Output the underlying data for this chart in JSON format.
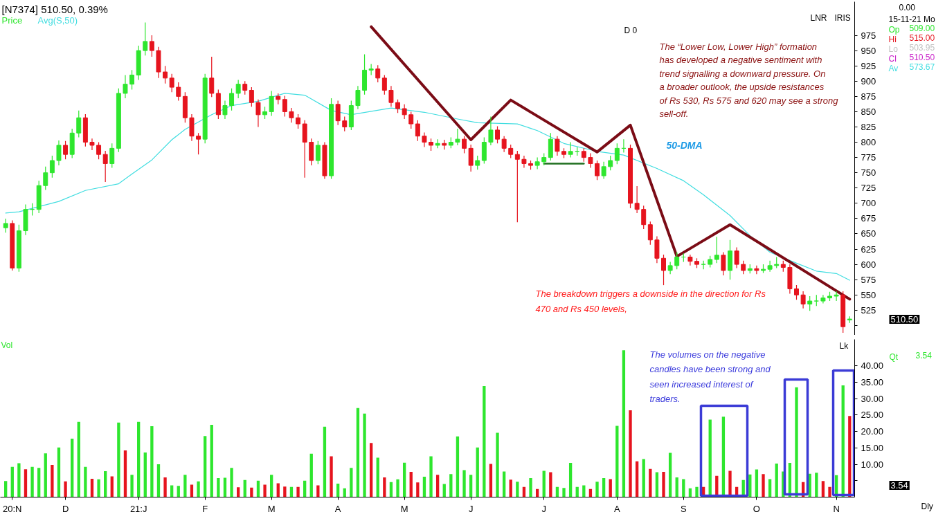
{
  "chart_data": [
    {
      "type": "candlestick",
      "title": "[N7374]  510.50,  0.39%",
      "legend": "top left",
      "tick_labels": "y",
      "ylim": [
        484,
        1030
      ],
      "yticks": [
        {
          "value": 500,
          "label": null
        },
        525,
        550,
        575,
        600,
        625,
        650,
        675,
        700,
        725,
        750,
        775,
        800,
        825,
        850,
        875,
        900,
        925,
        950,
        975
      ],
      "series": [
        {
          "name": "Price",
          "type": "candlestick",
          "color": "#2ee62e",
          "ohlc": [
            [
              660,
              675,
              652,
              667
            ],
            [
              667,
              672,
              590,
              594
            ],
            [
              594,
              665,
              588,
              655
            ],
            [
              655,
              698,
              648,
              690
            ],
            [
              690,
              700,
              680,
              690
            ],
            [
              690,
              737,
              684,
              729
            ],
            [
              729,
              760,
              722,
              750
            ],
            [
              750,
              778,
              742,
              770
            ],
            [
              770,
              803,
              762,
              795
            ],
            [
              795,
              802,
              772,
              780
            ],
            [
              780,
              822,
              774,
              815
            ],
            [
              815,
              852,
              808,
              840
            ],
            [
              840,
              846,
              793,
              800
            ],
            [
              800,
              806,
              787,
              795
            ],
            [
              795,
              800,
              772,
              780
            ],
            [
              780,
              786,
              735,
              765
            ],
            [
              765,
              798,
              758,
              790
            ],
            [
              790,
              888,
              784,
              880
            ],
            [
              880,
              910,
              872,
              895
            ],
            [
              895,
              918,
              886,
              910
            ],
            [
              910,
              958,
              902,
              950
            ],
            [
              950,
              996,
              942,
              965
            ],
            [
              965,
              975,
              940,
              950
            ],
            [
              950,
              956,
              905,
              915
            ],
            [
              915,
              925,
              896,
              905
            ],
            [
              905,
              912,
              882,
              890
            ],
            [
              890,
              898,
              868,
              875
            ],
            [
              875,
              882,
              832,
              840
            ],
            [
              840,
              846,
              802,
              810
            ],
            [
              810,
              815,
              780,
              805
            ],
            [
              805,
              912,
              798,
              905
            ],
            [
              905,
              940,
              874,
              880
            ],
            [
              880,
              886,
              838,
              845
            ],
            [
              845,
              868,
              838,
              860
            ],
            [
              860,
              888,
              852,
              880
            ],
            [
              880,
              902,
              872,
              895
            ],
            [
              895,
              900,
              878,
              885
            ],
            [
              885,
              890,
              858,
              865
            ],
            [
              865,
              870,
              825,
              845
            ],
            [
              845,
              858,
              838,
              850
            ],
            [
              850,
              884,
              843,
              875
            ],
            [
              875,
              880,
              862,
              870
            ],
            [
              870,
              876,
              842,
              850
            ],
            [
              850,
              856,
              832,
              840
            ],
            [
              840,
              846,
              822,
              830
            ],
            [
              830,
              836,
              742,
              800
            ],
            [
              800,
              806,
              762,
              770
            ],
            [
              770,
              802,
              764,
              795
            ],
            [
              795,
              800,
              740,
              745
            ],
            [
              745,
              872,
              740,
              862
            ],
            [
              862,
              868,
              828,
              835
            ],
            [
              835,
              842,
              818,
              825
            ],
            [
              825,
              868,
              820,
              860
            ],
            [
              860,
              892,
              854,
              885
            ],
            [
              885,
              944,
              878,
              918
            ],
            [
              918,
              928,
              910,
              920
            ],
            [
              920,
              926,
              898,
              905
            ],
            [
              905,
              910,
              878,
              885
            ],
            [
              885,
              892,
              858,
              865
            ],
            [
              865,
              870,
              848,
              855
            ],
            [
              855,
              862,
              838,
              845
            ],
            [
              845,
              850,
              822,
              830
            ],
            [
              830,
              836,
              802,
              810
            ],
            [
              810,
              816,
              792,
              800
            ],
            [
              800,
              806,
              786,
              795
            ],
            [
              795,
              805,
              790,
              798
            ],
            [
              798,
              804,
              788,
              795
            ],
            [
              795,
              808,
              790,
              800
            ],
            [
              800,
              822,
              795,
              805
            ],
            [
              805,
              810,
              782,
              790
            ],
            [
              790,
              796,
              752,
              762
            ],
            [
              762,
              778,
              755,
              770
            ],
            [
              770,
              808,
              765,
              800
            ],
            [
              800,
              842,
              795,
              820
            ],
            [
              820,
              826,
              798,
              805
            ],
            [
              805,
              810,
              784,
              790
            ],
            [
              790,
              796,
              774,
              780
            ],
            [
              780,
              786,
              669,
              772
            ],
            [
              772,
              778,
              758,
              765
            ],
            [
              765,
              770,
              755,
              762
            ],
            [
              762,
              775,
              756,
              768
            ],
            [
              768,
              782,
              762,
              775
            ],
            [
              775,
              815,
              770,
              805
            ],
            [
              805,
              810,
              778,
              785
            ],
            [
              785,
              790,
              774,
              780
            ],
            [
              780,
              800,
              775,
              785
            ],
            [
              785,
              792,
              778,
              785
            ],
            [
              785,
              790,
              768,
              775
            ],
            [
              775,
              782,
              758,
              765
            ],
            [
              765,
              770,
              738,
              745
            ],
            [
              745,
              768,
              740,
              760
            ],
            [
              760,
              778,
              754,
              770
            ],
            [
              770,
              798,
              764,
              790
            ],
            [
              790,
              805,
              783,
              790
            ],
            [
              790,
              796,
              692,
              700
            ],
            [
              700,
              728,
              684,
              690
            ],
            [
              690,
              696,
              658,
              665
            ],
            [
              665,
              670,
              632,
              640
            ],
            [
              640,
              646,
              602,
              610
            ],
            [
              610,
              616,
              566,
              590
            ],
            [
              590,
              604,
              584,
              598
            ],
            [
              598,
              620,
              592,
              612
            ],
            [
              612,
              618,
              604,
              612
            ],
            [
              612,
              616,
              598,
              605
            ],
            [
              605,
              610,
              594,
              600
            ],
            [
              600,
              606,
              592,
              600
            ],
            [
              600,
              614,
              595,
              608
            ],
            [
              608,
              645,
              602,
              615
            ],
            [
              615,
              620,
              582,
              590
            ],
            [
              590,
              640,
              575,
              622
            ],
            [
              622,
              628,
              594,
              600
            ],
            [
              600,
              606,
              584,
              590
            ],
            [
              590,
              600,
              585,
              593
            ],
            [
              593,
              598,
              584,
              590
            ],
            [
              590,
              600,
              586,
              592
            ],
            [
              592,
              606,
              588,
              598
            ],
            [
              598,
              612,
              594,
              600
            ],
            [
              600,
              606,
              588,
              595
            ],
            [
              595,
              600,
              552,
              560
            ],
            [
              560,
              566,
              542,
              550
            ],
            [
              550,
              556,
              528,
              535
            ],
            [
              535,
              548,
              524,
              540
            ],
            [
              540,
              550,
              532,
              540
            ],
            [
              540,
              550,
              536,
              545
            ],
            [
              545,
              555,
              540,
              548
            ],
            [
              548,
              556,
              540,
              550
            ],
            [
              550,
              556,
              488,
              498
            ],
            [
              509,
              515,
              504,
              510.5
            ]
          ],
          "colors": [
            "#2ee62e",
            "#e6141e",
            "#2ee62e",
            "#2ee62e",
            "#2ee62e",
            "#2ee62e",
            "#2ee62e",
            "#2ee62e",
            "#2ee62e",
            "#e6141e",
            "#2ee62e",
            "#2ee62e",
            "#e6141e",
            "#e6141e",
            "#e6141e",
            "#e6141e",
            "#2ee62e",
            "#2ee62e",
            "#2ee62e",
            "#2ee62e",
            "#2ee62e",
            "#2ee62e",
            "#e6141e",
            "#e6141e",
            "#e6141e",
            "#e6141e",
            "#e6141e",
            "#e6141e",
            "#e6141e",
            "#e6141e",
            "#2ee62e",
            "#e6141e",
            "#e6141e",
            "#2ee62e",
            "#2ee62e",
            "#2ee62e",
            "#e6141e",
            "#e6141e",
            "#e6141e",
            "#2ee62e",
            "#2ee62e",
            "#e6141e",
            "#e6141e",
            "#e6141e",
            "#e6141e",
            "#e6141e",
            "#e6141e",
            "#2ee62e",
            "#e6141e",
            "#2ee62e",
            "#e6141e",
            "#e6141e",
            "#2ee62e",
            "#2ee62e",
            "#2ee62e",
            "#2ee62e",
            "#e6141e",
            "#e6141e",
            "#e6141e",
            "#e6141e",
            "#e6141e",
            "#e6141e",
            "#e6141e",
            "#e6141e",
            "#e6141e",
            "#2ee62e",
            "#e6141e",
            "#2ee62e",
            "#2ee62e",
            "#e6141e",
            "#e6141e",
            "#2ee62e",
            "#2ee62e",
            "#2ee62e",
            "#e6141e",
            "#e6141e",
            "#e6141e",
            "#e6141e",
            "#e6141e",
            "#e6141e",
            "#2ee62e",
            "#2ee62e",
            "#2ee62e",
            "#e6141e",
            "#e6141e",
            "#2ee62e",
            "#2ee62e",
            "#e6141e",
            "#e6141e",
            "#e6141e",
            "#2ee62e",
            "#2ee62e",
            "#2ee62e",
            "#2ee62e",
            "#e6141e",
            "#e6141e",
            "#e6141e",
            "#e6141e",
            "#e6141e",
            "#e6141e",
            "#2ee62e",
            "#2ee62e",
            "#2ee62e",
            "#e6141e",
            "#e6141e",
            "#2ee62e",
            "#2ee62e",
            "#2ee62e",
            "#e6141e",
            "#2ee62e",
            "#e6141e",
            "#e6141e",
            "#2ee62e",
            "#e6141e",
            "#2ee62e",
            "#2ee62e",
            "#2ee62e",
            "#e6141e",
            "#e6141e",
            "#e6141e",
            "#e6141e",
            "#2ee62e",
            "#2ee62e",
            "#2ee62e",
            "#2ee62e",
            "#2ee62e",
            "#e6141e",
            "#2ee62e"
          ]
        },
        {
          "name": "Avg(S,50)",
          "type": "line",
          "color": "#40dde0",
          "values": [
            684,
            null,
            686,
            null,
            null,
            null,
            null,
            null,
            703,
            null,
            null,
            null,
            721,
            null,
            null,
            null,
            null,
            732,
            null,
            748,
            null,
            null,
            771,
            null,
            null,
            804,
            null,
            821,
            null,
            null,
            null,
            845,
            null,
            null,
            860,
            null,
            null,
            null,
            867,
            null,
            null,
            null,
            880,
            null,
            null,
            877,
            null,
            null,
            null,
            852,
            null,
            null,
            845,
            null,
            null,
            null,
            null,
            null,
            856,
            null,
            null,
            null,
            null,
            849,
            null,
            null,
            null,
            null,
            838,
            null,
            null,
            832,
            null,
            null,
            null,
            null,
            null,
            830,
            null,
            null,
            819,
            null,
            null,
            null,
            798,
            null,
            null,
            null,
            null,
            785,
            null,
            null,
            null,
            779,
            null,
            null,
            null,
            null,
            757,
            null,
            null,
            null,
            737,
            null,
            null,
            714,
            null,
            null,
            null,
            680,
            null,
            null,
            647,
            null,
            null,
            620,
            null,
            null,
            null,
            602,
            null,
            null,
            589,
            null,
            null,
            585,
            null,
            574
          ]
        },
        {
          "type": "line",
          "color": "#7b0c16",
          "values": [
            null,
            null,
            null,
            null,
            null,
            null,
            null,
            null,
            null,
            null,
            null,
            null,
            null,
            null,
            null,
            null,
            null,
            null,
            null,
            null,
            null,
            null,
            null,
            null,
            null,
            null,
            null,
            null,
            null,
            null,
            null,
            null,
            null,
            null,
            null,
            null,
            null,
            null,
            null,
            null,
            null,
            null,
            null,
            null,
            null,
            null,
            null,
            null,
            null,
            null,
            null,
            null,
            null,
            null,
            null,
            989,
            null,
            null,
            null,
            null,
            null,
            null,
            null,
            null,
            null,
            null,
            null,
            null,
            null,
            null,
            804,
            null,
            null,
            null,
            null,
            null,
            869,
            null,
            null,
            null,
            null,
            null,
            null,
            null,
            null,
            null,
            null,
            null,
            null,
            784,
            null,
            null,
            null,
            null,
            828,
            null,
            null,
            null,
            null,
            null,
            null,
            613,
            null,
            null,
            null,
            null,
            null,
            null,
            null,
            665,
            null,
            null,
            null,
            null,
            null,
            null,
            null,
            null,
            null,
            null,
            null,
            null,
            null,
            null,
            null,
            null,
            null,
            543
          ]
        },
        {
          "type": "line",
          "color": "#1e6e1e",
          "values": [
            null,
            null,
            null,
            null,
            null,
            null,
            null,
            null,
            null,
            null,
            null,
            null,
            null,
            null,
            null,
            null,
            null,
            null,
            null,
            null,
            null,
            null,
            null,
            null,
            null,
            null,
            null,
            null,
            null,
            null,
            null,
            null,
            null,
            null,
            null,
            null,
            null,
            null,
            null,
            null,
            null,
            null,
            null,
            null,
            null,
            null,
            null,
            null,
            null,
            null,
            null,
            null,
            null,
            null,
            null,
            null,
            null,
            null,
            null,
            null,
            null,
            null,
            null,
            null,
            null,
            null,
            null,
            null,
            null,
            null,
            null,
            null,
            null,
            null,
            null,
            null,
            null,
            null,
            null,
            null,
            null,
            765,
            null,
            null,
            null,
            null,
            null,
            765,
            null,
            null,
            null,
            null,
            null,
            null,
            null,
            null,
            null,
            null,
            null,
            null,
            null,
            null,
            null,
            null,
            null,
            null,
            null,
            null,
            null,
            null,
            null,
            null,
            null,
            null,
            null,
            null,
            null,
            null,
            null,
            null,
            null,
            null,
            null,
            null,
            null,
            null,
            null,
            null
          ]
        }
      ],
      "annotations": [
        "D 0",
        "The “Lower Low, Lower High” formation\nhas developed a negative sentiment with\ntrend signalling a downward pressure. On\na broader outlook, the upside resistances\nof Rs 530, Rs 575 and 620 may see a strong\nsell-off.",
        "The breakdown triggers a downside in the direction for Rs\n470 and Rs 450 levels,",
        "50-DMA",
        "LNR",
        "IRIS",
        "0.00",
        "15-11-21 Mo",
        "Op",
        "509.00",
        "Hi",
        "515.00",
        "Lo",
        "503.95",
        "Cl",
        "510.50",
        "Av",
        "573.67",
        "510.50"
      ]
    },
    {
      "type": "bar",
      "title": "Vol",
      "ylabel": "Lk",
      "categories": [
        null,
        "20:N",
        null,
        null,
        null,
        null,
        null,
        null,
        null,
        "D",
        null,
        null,
        null,
        null,
        null,
        null,
        null,
        null,
        null,
        null,
        "21:J",
        null,
        null,
        null,
        null,
        null,
        null,
        null,
        null,
        null,
        "F",
        null,
        null,
        null,
        null,
        null,
        null,
        null,
        null,
        null,
        "M",
        null,
        null,
        null,
        null,
        null,
        null,
        null,
        null,
        null,
        "A",
        null,
        null,
        null,
        null,
        null,
        null,
        null,
        null,
        null,
        "M",
        null,
        null,
        null,
        null,
        null,
        null,
        null,
        null,
        null,
        "J",
        null,
        null,
        null,
        null,
        null,
        null,
        null,
        null,
        null,
        null,
        "J",
        null,
        null,
        null,
        null,
        null,
        null,
        null,
        null,
        null,
        null,
        "A",
        null,
        null,
        null,
        null,
        null,
        null,
        null,
        null,
        null,
        "S",
        null,
        null,
        null,
        null,
        null,
        null,
        null,
        null,
        null,
        null,
        "O",
        null,
        null,
        null,
        null,
        null,
        null,
        null,
        null,
        null,
        null,
        null,
        "N",
        null,
        null
      ],
      "ylim": [
        0,
        48
      ],
      "yticks": [
        {
          "value": 5,
          "label": null
        },
        {
          "value": 10,
          "label": "10.00"
        },
        {
          "value": 15,
          "label": "15.00"
        },
        {
          "value": 20,
          "label": "20.00"
        },
        {
          "value": 25,
          "label": "25.00"
        },
        {
          "value": 30,
          "label": "30.00"
        },
        {
          "value": 35,
          "label": "35.00"
        },
        {
          "value": 40,
          "label": "40.00"
        }
      ],
      "values": [
        4.9,
        9.2,
        10.3,
        8.5,
        9.2,
        8.9,
        13.3,
        9.8,
        15.1,
        4.8,
        17.8,
        22.9,
        9.2,
        5.6,
        5.4,
        7.9,
        6.3,
        22.7,
        14.2,
        6.8,
        22.9,
        13.6,
        21.6,
        10.0,
        6.0,
        3.6,
        3.4,
        6.8,
        3.8,
        4.8,
        18.6,
        22.0,
        5.8,
        5.9,
        8.9,
        3.0,
        5.2,
        2.9,
        5.0,
        3.8,
        6.8,
        4.2,
        3.2,
        3.1,
        3.1,
        5.0,
        13.2,
        3.6,
        21.4,
        12.4,
        4.1,
        2.7,
        8.9,
        27.1,
        25.4,
        16.5,
        12.0,
        6.0,
        4.6,
        5.4,
        10.5,
        7.7,
        4.5,
        6.2,
        12.4,
        6.8,
        4.0,
        7.0,
        18.5,
        8.2,
        6.8,
        15.1,
        33.8,
        10.1,
        19.6,
        7.8,
        5.3,
        4.7,
        3.1,
        5.8,
        2.5,
        8.0,
        7.6,
        3.1,
        2.8,
        10.4,
        3.1,
        3.6,
        2.5,
        4.7,
        5.8,
        5.5,
        21.7,
        44.7,
        26.4,
        10.9,
        11.6,
        8.6,
        7.6,
        7.7,
        13.5,
        6.0,
        5.5,
        2.7,
        3.1,
        3.1,
        23.6,
        6.5,
        24.5,
        8.0,
        3.1,
        5.2,
        6.9,
        8.4,
        7.0,
        5.5,
        10.2,
        7.8,
        10.4,
        33.4,
        4.6,
        7.1,
        7.4,
        4.9,
        3.1,
        6.7,
        34.0,
        24.7
      ],
      "colors": [
        "#2ee62e",
        "#2ee62e",
        "#2ee62e",
        "#e6141e",
        "#2ee62e",
        "#2ee62e",
        "#2ee62e",
        "#e6141e",
        "#2ee62e",
        "#e6141e",
        "#2ee62e",
        "#2ee62e",
        "#2ee62e",
        "#e6141e",
        "#2ee62e",
        "#2ee62e",
        "#e6141e",
        "#2ee62e",
        "#e6141e",
        "#2ee62e",
        "#2ee62e",
        "#2ee62e",
        "#2ee62e",
        "#2ee62e",
        "#e6141e",
        "#2ee62e",
        "#2ee62e",
        "#2ee62e",
        "#e6141e",
        "#2ee62e",
        "#2ee62e",
        "#2ee62e",
        "#2ee62e",
        "#2ee62e",
        "#2ee62e",
        "#e6141e",
        "#2ee62e",
        "#e6141e",
        "#2ee62e",
        "#e6141e",
        "#2ee62e",
        "#e6141e",
        "#e6141e",
        "#2ee62e",
        "#e6141e",
        "#2ee62e",
        "#2ee62e",
        "#e6141e",
        "#2ee62e",
        "#e6141e",
        "#2ee62e",
        "#2ee62e",
        "#2ee62e",
        "#2ee62e",
        "#2ee62e",
        "#e6141e",
        "#2ee62e",
        "#e6141e",
        "#2ee62e",
        "#2ee62e",
        "#2ee62e",
        "#e6141e",
        "#e6141e",
        "#2ee62e",
        "#2ee62e",
        "#e6141e",
        "#2ee62e",
        "#2ee62e",
        "#2ee62e",
        "#2ee62e",
        "#2ee62e",
        "#2ee62e",
        "#2ee62e",
        "#e6141e",
        "#2ee62e",
        "#2ee62e",
        "#e6141e",
        "#2ee62e",
        "#e6141e",
        "#2ee62e",
        "#e6141e",
        "#2ee62e",
        "#e6141e",
        "#2ee62e",
        "#2ee62e",
        "#2ee62e",
        "#2ee62e",
        "#2ee62e",
        "#e6141e",
        "#2ee62e",
        "#2ee62e",
        "#e6141e",
        "#2ee62e",
        "#2ee62e",
        "#e6141e",
        "#e6141e",
        "#2ee62e",
        "#e6141e",
        "#2ee62e",
        "#e6141e",
        "#2ee62e",
        "#2ee62e",
        "#2ee62e",
        "#2ee62e",
        "#2ee62e",
        "#e6141e",
        "#2ee62e",
        "#e6141e",
        "#2ee62e",
        "#e6141e",
        "#e6141e",
        "#2ee62e",
        "#2ee62e",
        "#2ee62e",
        "#e6141e",
        "#2ee62e",
        "#2ee62e",
        "#2ee62e",
        "#2ee62e",
        "#2ee62e",
        "#e6141e",
        "#2ee62e",
        "#2ee62e",
        "#e6141e",
        "#e6141e",
        "#2ee62e",
        "#2ee62e",
        "#e6141e"
      ],
      "annotations": [
        "The volumes on the negative\ncandles have been strong and\nseen increased interest of\ntraders.",
        "Qt",
        "3.54",
        "Dly",
        "3.54"
      ]
    }
  ]
}
